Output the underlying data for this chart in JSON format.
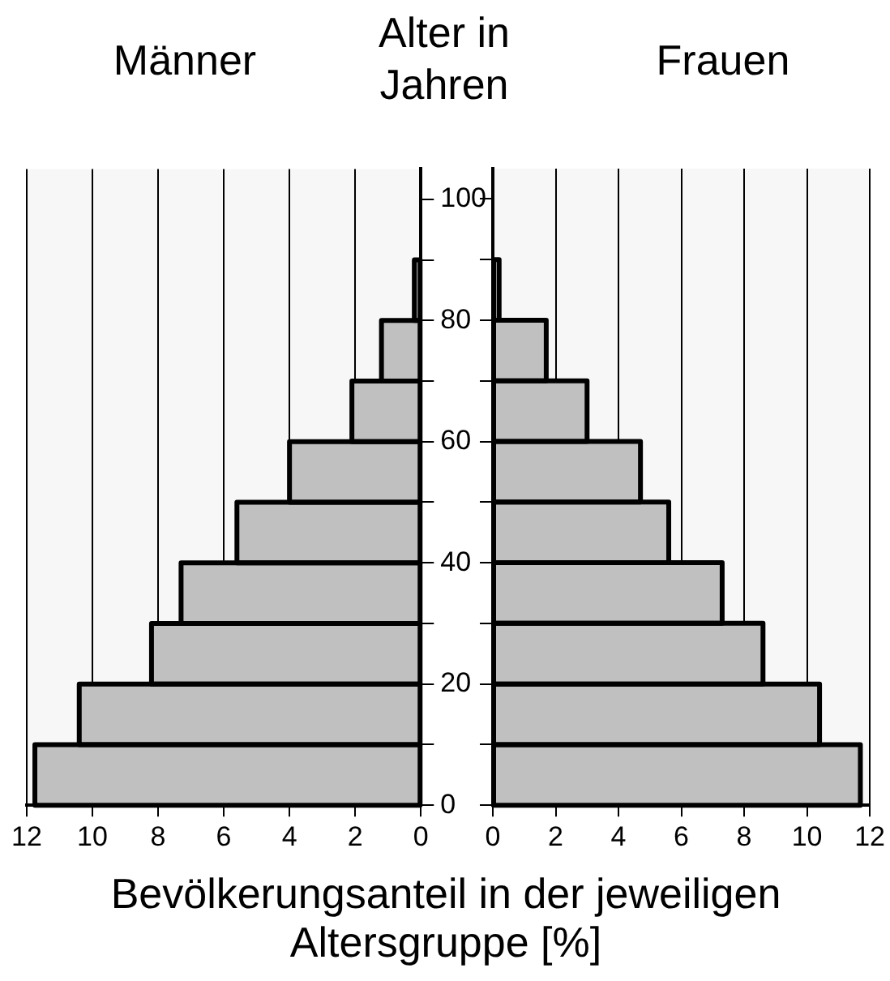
{
  "chart_data": [
    {
      "type": "histogram",
      "title": "Männer",
      "ylabel": "Alter in Jahren",
      "xlabel": "Bevölkerungsanteil in der jeweiligen Altersgruppe [%]",
      "orientation": "horizontal",
      "color": "#c0c0c0",
      "bins": [
        0,
        10,
        20,
        30,
        40,
        50,
        60,
        70,
        80,
        90
      ],
      "values": [
        11.75,
        10.4,
        8.2,
        7.3,
        5.6,
        4.0,
        2.1,
        1.2,
        0.2
      ],
      "xlim": [
        12,
        0
      ],
      "xticks": [
        12,
        10,
        8,
        6,
        4,
        2,
        0
      ],
      "ylim": [
        0,
        105
      ],
      "yticks": [
        0,
        {
          "value": 10,
          "label": null
        },
        20,
        {
          "value": 30,
          "label": null
        },
        40,
        {
          "value": 50,
          "label": null
        },
        60,
        {
          "value": 70,
          "label": null
        },
        80,
        {
          "value": 90,
          "label": null
        },
        100
      ],
      "grid": "x"
    },
    {
      "type": "histogram",
      "title": "Frauen",
      "orientation": "horizontal",
      "color": "#c0c0c0",
      "bins": [
        0,
        10,
        20,
        30,
        40,
        50,
        60,
        70,
        80,
        90
      ],
      "values": [
        11.7,
        10.4,
        8.6,
        7.3,
        5.6,
        4.7,
        3.0,
        1.7,
        0.2
      ],
      "xlim": [
        0,
        12
      ],
      "xticks": [
        0,
        2,
        4,
        6,
        8,
        10,
        12
      ],
      "ylim": [
        0,
        105
      ],
      "yticks": [
        0,
        {
          "value": 10,
          "label": null
        },
        20,
        {
          "value": 30,
          "label": null
        },
        40,
        {
          "value": 50,
          "label": null
        },
        60,
        {
          "value": 70,
          "label": null
        },
        80,
        {
          "value": 90,
          "label": null
        },
        100
      ],
      "grid": "x",
      "tick_labels": "x"
    }
  ]
}
